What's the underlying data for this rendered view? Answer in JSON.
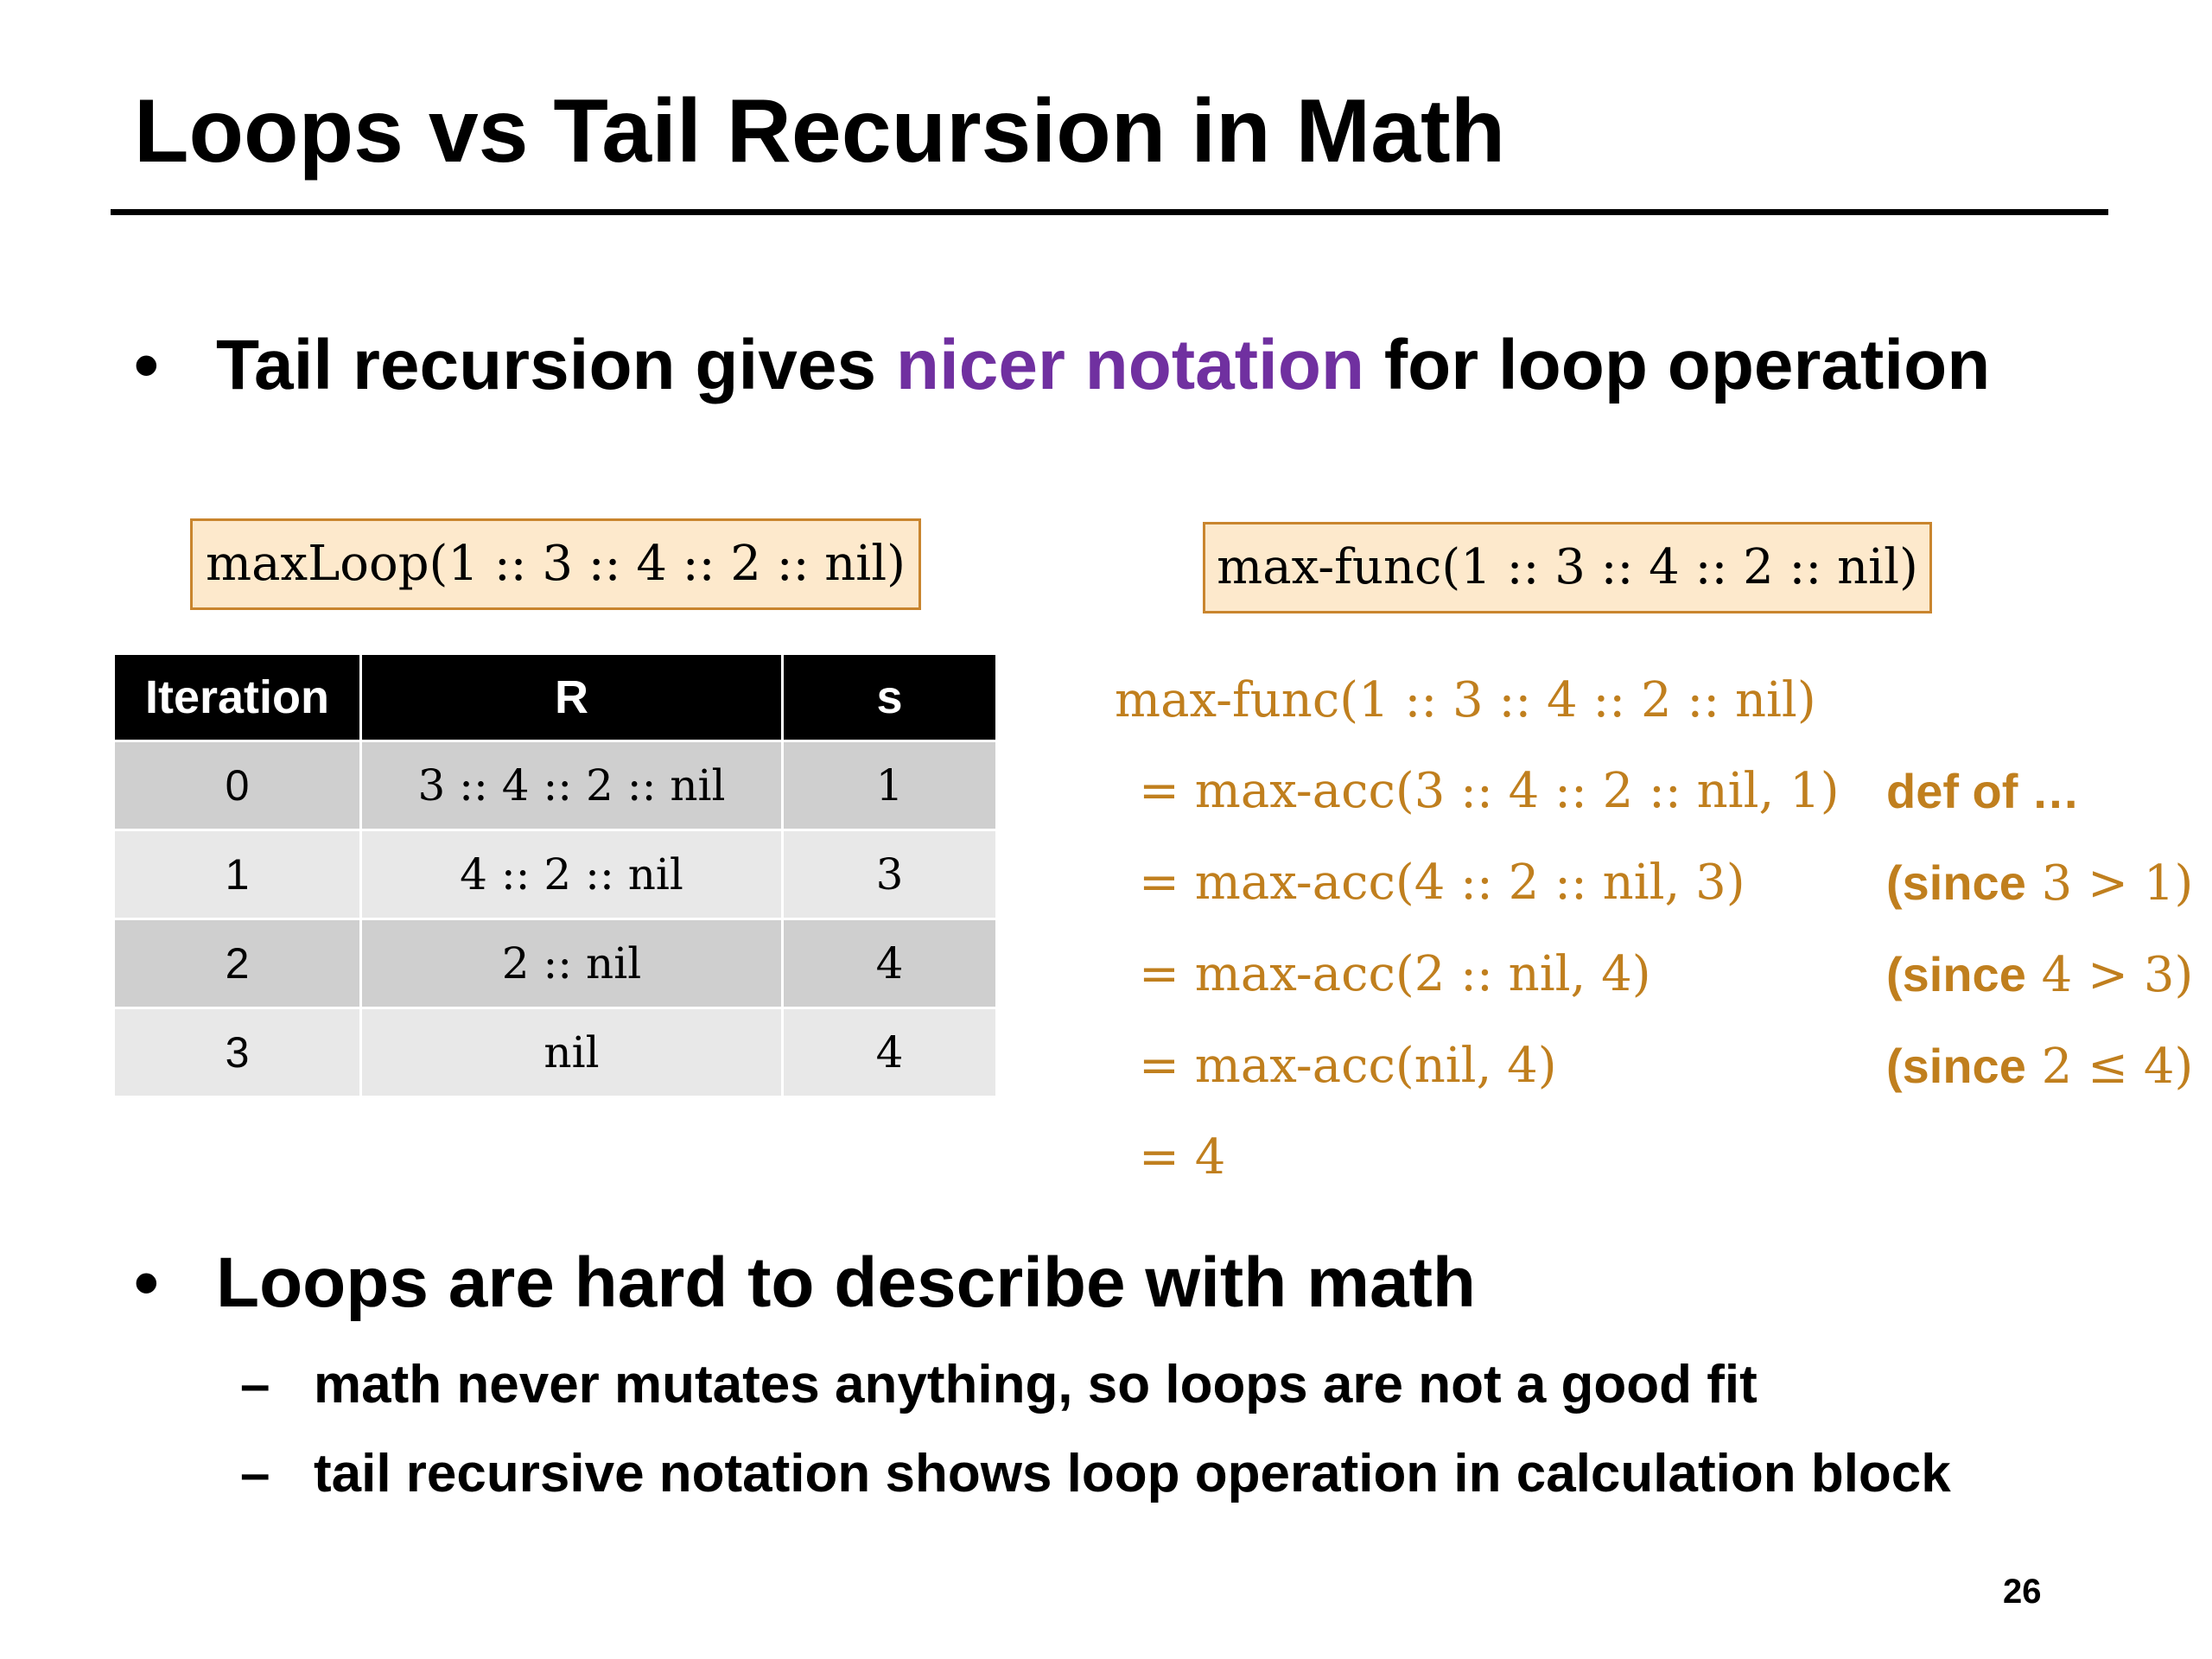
{
  "title": "Loops vs Tail Recursion in Math",
  "bullet1": {
    "marker": "•",
    "before": "Tail recursion gives ",
    "highlight": "nicer notation",
    "after": " for loop operation",
    "highlight_color": "#7030a0"
  },
  "loop_box": {
    "label": "maxLoop(1 :: 3 :: 4 :: 2 :: nil)"
  },
  "func_box": {
    "label": "max-func(1 :: 3 :: 4 :: 2 :: nil)"
  },
  "table": {
    "headers": [
      "Iteration",
      "R",
      "s"
    ],
    "rows": [
      {
        "iteration": "0",
        "r": "3 :: 4 :: 2 :: nil",
        "s": "1"
      },
      {
        "iteration": "1",
        "r": "4 :: 2 :: nil",
        "s": "3"
      },
      {
        "iteration": "2",
        "r": "2 :: nil",
        "s": "4"
      },
      {
        "iteration": "3",
        "r": "nil",
        "s": "4"
      }
    ]
  },
  "calculation": {
    "color": "#c07f1e",
    "start": "max-func(1 :: 3 :: 4 :: 2 :: nil)",
    "steps": [
      {
        "expr": "= max-acc(3 :: 4 :: 2 :: nil, 1)",
        "note_kw": "def of …",
        "note_math": "",
        "note_end": ""
      },
      {
        "expr": "= max-acc(4 :: 2 :: nil, 3)",
        "note_kw": "(since",
        "note_math": " 3 > 1",
        "note_end": ")"
      },
      {
        "expr": "= max-acc(2 :: nil, 4)",
        "note_kw": "(since",
        "note_math": " 4 > 3",
        "note_end": ")"
      },
      {
        "expr": "= max-acc(nil, 4)",
        "note_kw": "(since",
        "note_math": " 2 ≤ 4",
        "note_end": ")"
      },
      {
        "expr": "= 4",
        "note_kw": "",
        "note_math": "",
        "note_end": ""
      }
    ]
  },
  "bullet2": {
    "marker": "•",
    "text": "Loops are hard to describe with math",
    "subs": [
      {
        "marker": "–",
        "text": "math never mutates anything, so loops are not a good fit"
      },
      {
        "marker": "–",
        "text": "tail recursive notation shows loop operation in calculation block"
      }
    ]
  },
  "page_number": "26"
}
